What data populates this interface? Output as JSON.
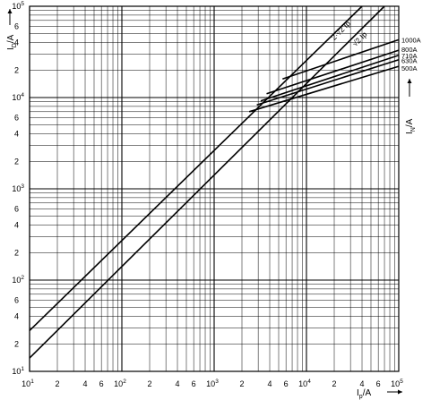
{
  "chart_data": {
    "type": "line",
    "x_scale": "log",
    "y_scale": "log",
    "xlim": [
      10,
      100000
    ],
    "ylim": [
      10,
      100000
    ],
    "grid": true,
    "legend_placement": "right (labels at line ends)",
    "xlabel": {
      "main": "I",
      "sub": "p",
      "unit": "/A"
    },
    "ylabel": {
      "main": "I",
      "sub": "D",
      "unit": "/A"
    },
    "right_label": {
      "main": "I",
      "sub": "N",
      "unit": "/A"
    },
    "diagonal_labels": [
      "2·√2 Ip",
      "√2 Ip"
    ],
    "x_tick_labels": [
      {
        "v": 10,
        "base": "10",
        "exp": "1"
      },
      {
        "v": 20,
        "base": "2",
        "exp": ""
      },
      {
        "v": 40,
        "base": "4",
        "exp": ""
      },
      {
        "v": 60,
        "base": "6",
        "exp": ""
      },
      {
        "v": 100,
        "base": "10",
        "exp": "2"
      },
      {
        "v": 200,
        "base": "2",
        "exp": ""
      },
      {
        "v": 400,
        "base": "4",
        "exp": ""
      },
      {
        "v": 600,
        "base": "6",
        "exp": ""
      },
      {
        "v": 1000,
        "base": "10",
        "exp": "3"
      },
      {
        "v": 2000,
        "base": "2",
        "exp": ""
      },
      {
        "v": 4000,
        "base": "4",
        "exp": ""
      },
      {
        "v": 6000,
        "base": "6",
        "exp": ""
      },
      {
        "v": 10000,
        "base": "10",
        "exp": "4"
      },
      {
        "v": 20000,
        "base": "2",
        "exp": ""
      },
      {
        "v": 40000,
        "base": "4",
        "exp": ""
      },
      {
        "v": 60000,
        "base": "6",
        "exp": ""
      },
      {
        "v": 100000,
        "base": "10",
        "exp": "5"
      }
    ],
    "y_tick_labels": [
      {
        "v": 10,
        "base": "10",
        "exp": "1"
      },
      {
        "v": 20,
        "base": "2",
        "exp": ""
      },
      {
        "v": 40,
        "base": "4",
        "exp": ""
      },
      {
        "v": 60,
        "base": "6",
        "exp": ""
      },
      {
        "v": 100,
        "base": "10",
        "exp": "2"
      },
      {
        "v": 200,
        "base": "2",
        "exp": ""
      },
      {
        "v": 400,
        "base": "4",
        "exp": ""
      },
      {
        "v": 600,
        "base": "6",
        "exp": ""
      },
      {
        "v": 1000,
        "base": "10",
        "exp": "3"
      },
      {
        "v": 2000,
        "base": "2",
        "exp": ""
      },
      {
        "v": 4000,
        "base": "4",
        "exp": ""
      },
      {
        "v": 6000,
        "base": "6",
        "exp": ""
      },
      {
        "v": 10000,
        "base": "10",
        "exp": "4"
      },
      {
        "v": 20000,
        "base": "2",
        "exp": ""
      },
      {
        "v": 40000,
        "base": "4",
        "exp": ""
      },
      {
        "v": 60000,
        "base": "6",
        "exp": ""
      },
      {
        "v": 100000,
        "base": "10",
        "exp": "5"
      }
    ],
    "series": [
      {
        "name": "2·√2 Ip",
        "points": [
          [
            10,
            28
          ],
          [
            40000,
            100000
          ]
        ]
      },
      {
        "name": "√2 Ip",
        "points": [
          [
            10,
            14
          ],
          [
            70000,
            100000
          ]
        ]
      },
      {
        "name": "1000A",
        "points": [
          [
            5500,
            16000
          ],
          [
            100000,
            43000
          ]
        ]
      },
      {
        "name": "800A",
        "points": [
          [
            3700,
            11000
          ],
          [
            100000,
            33000
          ]
        ]
      },
      {
        "name": "710A",
        "points": [
          [
            3200,
            9200
          ],
          [
            100000,
            29000
          ]
        ]
      },
      {
        "name": "630A",
        "points": [
          [
            2900,
            8300
          ],
          [
            100000,
            26000
          ]
        ]
      },
      {
        "name": "500A",
        "points": [
          [
            2400,
            7000
          ],
          [
            100000,
            22000
          ]
        ]
      }
    ],
    "line_colors": {
      "stroke": "#000000",
      "grid": "#000000",
      "background": "#ffffff"
    }
  }
}
